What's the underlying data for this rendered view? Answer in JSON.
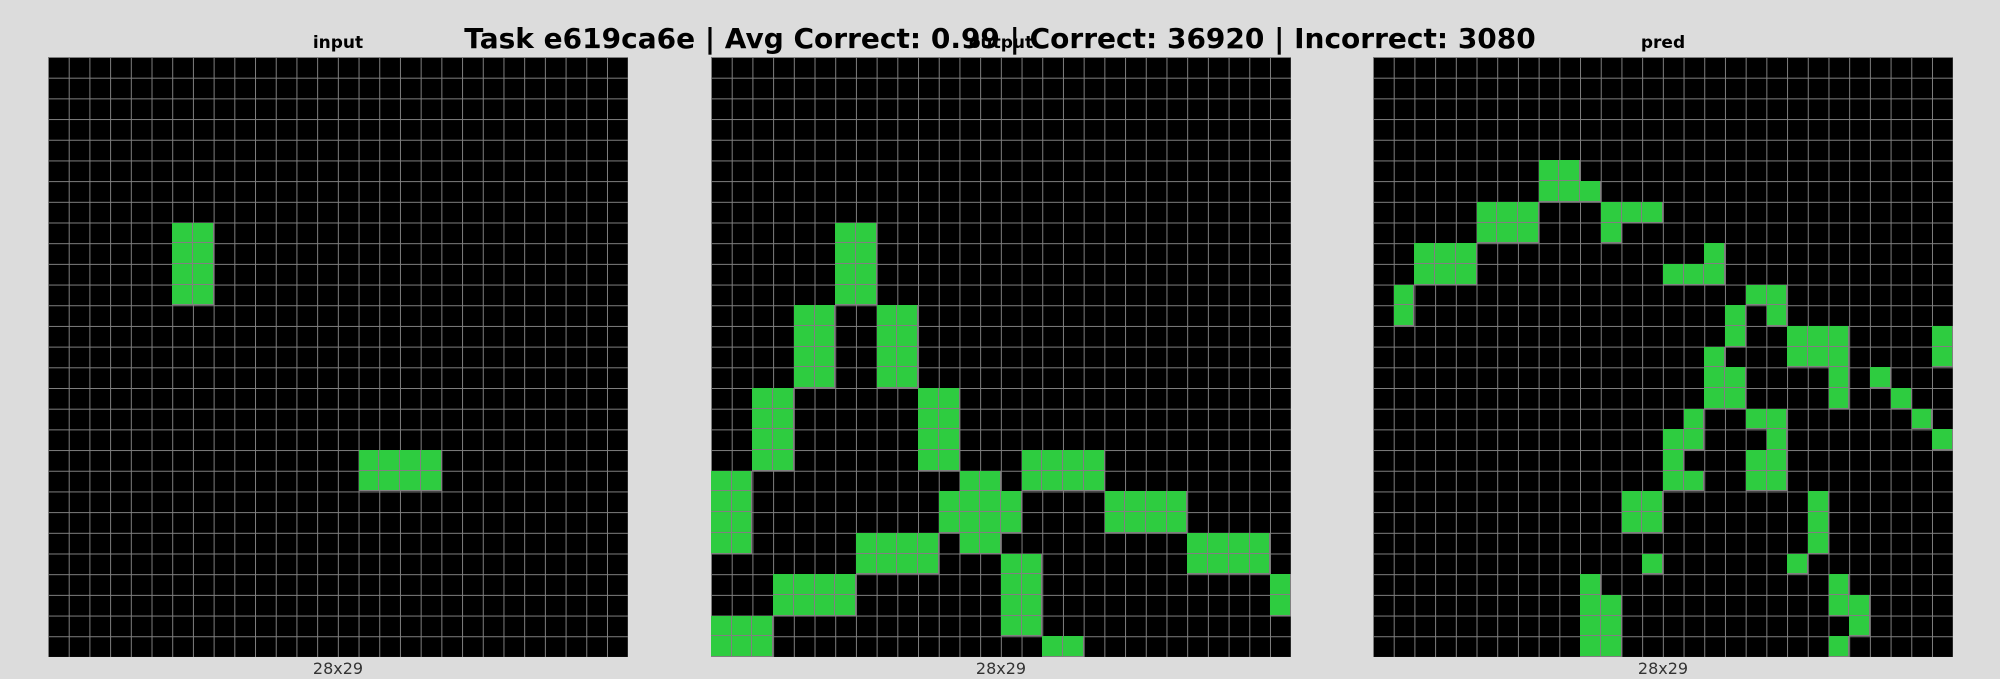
{
  "title": "Task e619ca6e | Avg Correct: 0.99 | Correct: 36920 | Incorrect: 3080",
  "colors": {
    "background": "#000000",
    "fill": "#2ecc40",
    "gridline": "#808080"
  },
  "panels": [
    {
      "label": "input",
      "dims": "28x29",
      "cols": 28,
      "rows": 29,
      "cells": [
        [
          6,
          8
        ],
        [
          7,
          8
        ],
        [
          6,
          9
        ],
        [
          7,
          9
        ],
        [
          6,
          10
        ],
        [
          7,
          10
        ],
        [
          6,
          11
        ],
        [
          7,
          11
        ],
        [
          15,
          19
        ],
        [
          16,
          19
        ],
        [
          17,
          19
        ],
        [
          18,
          19
        ],
        [
          15,
          20
        ],
        [
          16,
          20
        ],
        [
          17,
          20
        ],
        [
          18,
          20
        ]
      ]
    },
    {
      "label": "output",
      "dims": "28x29",
      "cols": 28,
      "rows": 29,
      "cells": [
        [
          6,
          8
        ],
        [
          7,
          8
        ],
        [
          6,
          9
        ],
        [
          7,
          9
        ],
        [
          6,
          10
        ],
        [
          7,
          10
        ],
        [
          6,
          11
        ],
        [
          7,
          11
        ],
        [
          4,
          12
        ],
        [
          5,
          12
        ],
        [
          4,
          13
        ],
        [
          5,
          13
        ],
        [
          4,
          14
        ],
        [
          5,
          14
        ],
        [
          4,
          15
        ],
        [
          5,
          15
        ],
        [
          8,
          12
        ],
        [
          9,
          12
        ],
        [
          8,
          13
        ],
        [
          9,
          13
        ],
        [
          8,
          14
        ],
        [
          9,
          14
        ],
        [
          8,
          15
        ],
        [
          9,
          15
        ],
        [
          2,
          16
        ],
        [
          3,
          16
        ],
        [
          2,
          17
        ],
        [
          3,
          17
        ],
        [
          2,
          18
        ],
        [
          3,
          18
        ],
        [
          2,
          19
        ],
        [
          3,
          19
        ],
        [
          10,
          16
        ],
        [
          11,
          16
        ],
        [
          10,
          17
        ],
        [
          11,
          17
        ],
        [
          10,
          18
        ],
        [
          11,
          18
        ],
        [
          10,
          19
        ],
        [
          11,
          19
        ],
        [
          0,
          20
        ],
        [
          1,
          20
        ],
        [
          0,
          21
        ],
        [
          1,
          21
        ],
        [
          0,
          22
        ],
        [
          1,
          22
        ],
        [
          0,
          23
        ],
        [
          1,
          23
        ],
        [
          12,
          20
        ],
        [
          13,
          20
        ],
        [
          11,
          21
        ],
        [
          12,
          21
        ],
        [
          13,
          21
        ],
        [
          14,
          21
        ],
        [
          11,
          22
        ],
        [
          12,
          22
        ],
        [
          13,
          22
        ],
        [
          14,
          22
        ],
        [
          12,
          23
        ],
        [
          13,
          23
        ],
        [
          15,
          19
        ],
        [
          16,
          19
        ],
        [
          17,
          19
        ],
        [
          18,
          19
        ],
        [
          15,
          20
        ],
        [
          16,
          20
        ],
        [
          17,
          20
        ],
        [
          18,
          20
        ],
        [
          19,
          21
        ],
        [
          20,
          21
        ],
        [
          21,
          21
        ],
        [
          22,
          21
        ],
        [
          19,
          22
        ],
        [
          20,
          22
        ],
        [
          21,
          22
        ],
        [
          22,
          22
        ],
        [
          23,
          23
        ],
        [
          24,
          23
        ],
        [
          25,
          23
        ],
        [
          26,
          23
        ],
        [
          23,
          24
        ],
        [
          24,
          24
        ],
        [
          25,
          24
        ],
        [
          26,
          24
        ],
        [
          27,
          25
        ],
        [
          27,
          26
        ],
        [
          7,
          23
        ],
        [
          8,
          23
        ],
        [
          9,
          23
        ],
        [
          10,
          23
        ],
        [
          7,
          24
        ],
        [
          8,
          24
        ],
        [
          9,
          24
        ],
        [
          10,
          24
        ],
        [
          3,
          25
        ],
        [
          4,
          25
        ],
        [
          5,
          25
        ],
        [
          6,
          25
        ],
        [
          3,
          26
        ],
        [
          4,
          26
        ],
        [
          5,
          26
        ],
        [
          6,
          26
        ],
        [
          0,
          27
        ],
        [
          1,
          27
        ],
        [
          2,
          27
        ],
        [
          0,
          28
        ],
        [
          1,
          28
        ],
        [
          2,
          28
        ],
        [
          14,
          24
        ],
        [
          15,
          24
        ],
        [
          14,
          25
        ],
        [
          15,
          25
        ],
        [
          14,
          26
        ],
        [
          15,
          26
        ],
        [
          14,
          27
        ],
        [
          15,
          27
        ],
        [
          16,
          28
        ],
        [
          17,
          28
        ]
      ]
    },
    {
      "label": "pred",
      "dims": "28x29",
      "cols": 28,
      "rows": 29,
      "cells": [
        [
          8,
          5
        ],
        [
          9,
          5
        ],
        [
          8,
          6
        ],
        [
          9,
          6
        ],
        [
          10,
          6
        ],
        [
          5,
          7
        ],
        [
          6,
          7
        ],
        [
          7,
          7
        ],
        [
          5,
          8
        ],
        [
          6,
          8
        ],
        [
          7,
          8
        ],
        [
          11,
          7
        ],
        [
          12,
          7
        ],
        [
          13,
          7
        ],
        [
          11,
          8
        ],
        [
          2,
          9
        ],
        [
          3,
          9
        ],
        [
          4,
          9
        ],
        [
          2,
          10
        ],
        [
          3,
          10
        ],
        [
          4,
          10
        ],
        [
          16,
          9
        ],
        [
          14,
          10
        ],
        [
          15,
          10
        ],
        [
          16,
          10
        ],
        [
          1,
          11
        ],
        [
          1,
          12
        ],
        [
          18,
          11
        ],
        [
          19,
          11
        ],
        [
          17,
          12
        ],
        [
          19,
          12
        ],
        [
          17,
          13
        ],
        [
          20,
          13
        ],
        [
          21,
          13
        ],
        [
          22,
          13
        ],
        [
          20,
          14
        ],
        [
          21,
          14
        ],
        [
          22,
          14
        ],
        [
          27,
          13
        ],
        [
          27,
          14
        ],
        [
          16,
          14
        ],
        [
          16,
          15
        ],
        [
          17,
          15
        ],
        [
          16,
          16
        ],
        [
          17,
          16
        ],
        [
          22,
          15
        ],
        [
          22,
          16
        ],
        [
          24,
          15
        ],
        [
          25,
          16
        ],
        [
          26,
          17
        ],
        [
          27,
          18
        ],
        [
          15,
          17
        ],
        [
          15,
          18
        ],
        [
          14,
          18
        ],
        [
          14,
          19
        ],
        [
          14,
          20
        ],
        [
          15,
          20
        ],
        [
          18,
          17
        ],
        [
          19,
          17
        ],
        [
          19,
          18
        ],
        [
          18,
          19
        ],
        [
          19,
          19
        ],
        [
          18,
          20
        ],
        [
          19,
          20
        ],
        [
          12,
          21
        ],
        [
          13,
          21
        ],
        [
          12,
          22
        ],
        [
          13,
          22
        ],
        [
          21,
          21
        ],
        [
          21,
          22
        ],
        [
          21,
          23
        ],
        [
          13,
          24
        ],
        [
          20,
          24
        ],
        [
          10,
          25
        ],
        [
          10,
          26
        ],
        [
          11,
          26
        ],
        [
          10,
          27
        ],
        [
          11,
          27
        ],
        [
          10,
          28
        ],
        [
          11,
          28
        ],
        [
          22,
          25
        ],
        [
          22,
          26
        ],
        [
          23,
          26
        ],
        [
          23,
          27
        ],
        [
          22,
          28
        ]
      ]
    }
  ]
}
